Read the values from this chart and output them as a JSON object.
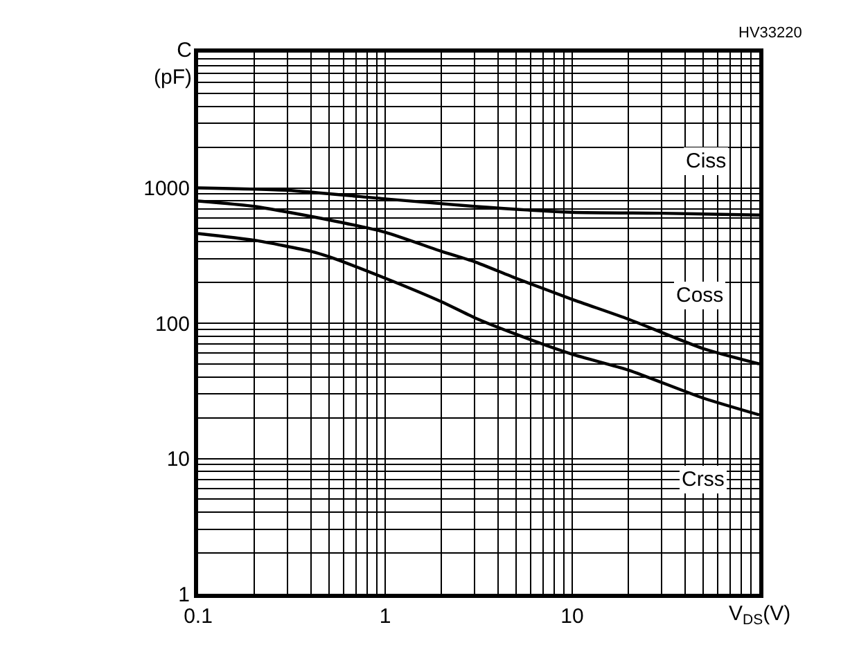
{
  "chart_data": {
    "type": "line",
    "xlabel": "V$_{DS}$(V)",
    "ylabel": "C\n(pF)",
    "log": "xy",
    "grid": true,
    "marker": "none",
    "line_style": "solid",
    "xlim": [
      0.1,
      100
    ],
    "xticks": [
      0.1,
      1,
      10
    ],
    "ylim": [
      1,
      10000
    ],
    "yticks": [
      1,
      10,
      100,
      1000
    ],
    "series": [
      {
        "color": "#000000",
        "x": [
          0.1,
          0.3,
          1,
          3,
          10,
          30,
          100
        ],
        "values": [
          1000,
          960,
          830,
          730,
          660,
          650,
          630
        ]
      },
      {
        "color": "#000000",
        "x": [
          0.1,
          0.2,
          0.5,
          1,
          2,
          3,
          5,
          10,
          20,
          50,
          100
        ],
        "values": [
          800,
          730,
          580,
          470,
          340,
          285,
          215,
          150,
          107,
          65,
          50
        ]
      },
      {
        "color": "#000000",
        "x": [
          0.1,
          0.2,
          0.4,
          0.5,
          1,
          2,
          3,
          5,
          10,
          20,
          50,
          100
        ],
        "values": [
          460,
          410,
          340,
          310,
          215,
          144,
          110,
          83,
          59,
          45,
          28,
          21
        ]
      }
    ],
    "annotations": [
      {
        "text": "Ciss",
        "x": 52,
        "y": 1580
      },
      {
        "text": "Coss",
        "x": 48,
        "y": 160
      },
      {
        "text": "Crss",
        "x": 50,
        "y": 7
      },
      "HV33220"
    ]
  }
}
